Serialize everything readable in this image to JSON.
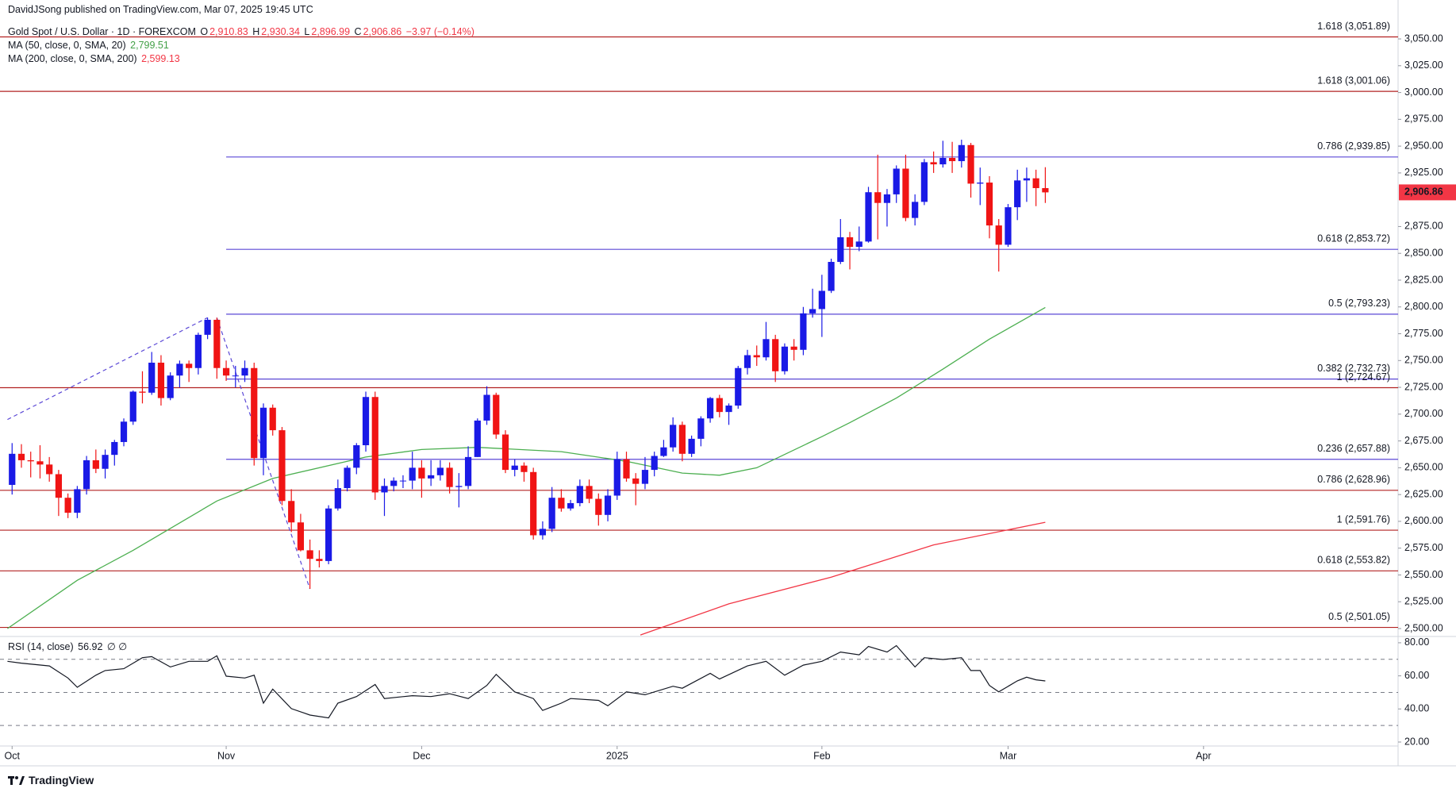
{
  "header": {
    "publisher": "DavidJSong published on TradingView.com, Mar 07, 2025 19:45 UTC",
    "symbol": "Gold Spot / U.S. Dollar · 1D · FOREXCOM",
    "ohlc": [
      {
        "key": "O",
        "value": "2,910.83"
      },
      {
        "key": "H",
        "value": "2,930.34"
      },
      {
        "key": "L",
        "value": "2,896.99"
      },
      {
        "key": "C",
        "value": "2,906.86"
      }
    ],
    "change": "−3.97 (−0.14%)",
    "indicators": [
      {
        "name": "MA (50, close, 0, SMA, 20)",
        "value": "2,799.51"
      },
      {
        "name": "MA (200, close, 0, SMA, 200)",
        "value": "2,599.13"
      }
    ]
  },
  "chart_data": [
    {
      "type": "candlestick",
      "up_color": "#1a1ae6",
      "down_color": "#f01414",
      "xlim": [
        -1.3,
        148.9
      ],
      "ylim": [
        2492.6,
        3086.3
      ],
      "yticks": [
        {
          "value": 2500,
          "label": "2,500.00"
        },
        {
          "value": 2525,
          "label": "2,525.00"
        },
        {
          "value": 2550,
          "label": "2,550.00"
        },
        {
          "value": 2575,
          "label": "2,575.00"
        },
        {
          "value": 2600,
          "label": "2,600.00"
        },
        {
          "value": 2625,
          "label": "2,625.00"
        },
        {
          "value": 2650,
          "label": "2,650.00"
        },
        {
          "value": 2675,
          "label": "2,675.00"
        },
        {
          "value": 2700,
          "label": "2,700.00"
        },
        {
          "value": 2725,
          "label": "2,725.00"
        },
        {
          "value": 2750,
          "label": "2,750.00"
        },
        {
          "value": 2775,
          "label": "2,775.00"
        },
        {
          "value": 2800,
          "label": "2,800.00"
        },
        {
          "value": 2825,
          "label": "2,825.00"
        },
        {
          "value": 2850,
          "label": "2,850.00"
        },
        {
          "value": 2875,
          "label": "2,875.00"
        },
        {
          "value": 2925,
          "label": "2,925.00"
        },
        {
          "value": 2950,
          "label": "2,950.00"
        },
        {
          "value": 2975,
          "label": "2,975.00"
        },
        {
          "value": 3000,
          "label": "3,000.00"
        },
        {
          "value": 3025,
          "label": "3,025.00"
        },
        {
          "value": 3050,
          "label": "3,050.00"
        }
      ],
      "open": [
        2634,
        2663,
        2657,
        2656,
        2653,
        2644,
        2622,
        2608,
        2630,
        2657,
        2649,
        2662,
        2674,
        2693,
        2721,
        2720,
        2748,
        2715,
        2736,
        2747,
        2743,
        2774,
        2788,
        2743,
        2736,
        2736,
        2743,
        2659,
        2706,
        2685,
        2619,
        2599,
        2573,
        2565,
        2563,
        2612,
        2631,
        2650,
        2671,
        2716,
        2627,
        2633,
        2638,
        2638,
        2650,
        2640,
        2643,
        2650,
        2632,
        2633,
        2660,
        2694,
        2718,
        2681,
        2648,
        2652,
        2646,
        2587,
        2593,
        2622,
        2612,
        2617,
        2633,
        2621,
        2606,
        2624,
        2658,
        2640,
        2635,
        2648,
        2661,
        2669,
        2690,
        2663,
        2677,
        2696,
        2715,
        2702,
        2708,
        2743,
        2755,
        2753,
        2770,
        2740,
        2763,
        2760,
        2794,
        2798,
        2815,
        2842,
        2865,
        2856,
        2861,
        2907,
        2897,
        2905,
        2929,
        2883,
        2898,
        2935,
        2933,
        2939,
        2936,
        2951,
        2915,
        2916,
        2876,
        2858,
        2893,
        2918,
        2920,
        2910.83
      ],
      "high": [
        2673,
        2672,
        2665,
        2671,
        2660,
        2648,
        2626,
        2633,
        2661,
        2667,
        2667,
        2676,
        2696,
        2722,
        2740,
        2758,
        2755,
        2739,
        2750,
        2750,
        2776,
        2790,
        2790,
        2750,
        2745,
        2750,
        2748,
        2710,
        2709,
        2688,
        2630,
        2607,
        2583,
        2573,
        2615,
        2639,
        2652,
        2673,
        2721,
        2721,
        2640,
        2641,
        2643,
        2665,
        2657,
        2657,
        2657,
        2655,
        2645,
        2670,
        2696,
        2726,
        2720,
        2685,
        2658,
        2655,
        2650,
        2600,
        2632,
        2630,
        2620,
        2639,
        2639,
        2626,
        2630,
        2665,
        2665,
        2645,
        2660,
        2665,
        2676,
        2697,
        2693,
        2680,
        2698,
        2716,
        2718,
        2710,
        2745,
        2760,
        2764,
        2786,
        2774,
        2766,
        2770,
        2800,
        2817,
        2830,
        2845,
        2882,
        2870,
        2875,
        2912,
        2942,
        2910,
        2932,
        2942,
        2905,
        2938,
        2945,
        2955,
        2954,
        2956,
        2953,
        2930,
        2922,
        2882,
        2896,
        2928,
        2930,
        2928,
        2930.34
      ],
      "low": [
        2625,
        2650,
        2641,
        2640,
        2637,
        2605,
        2603,
        2603,
        2625,
        2645,
        2640,
        2652,
        2670,
        2690,
        2710,
        2718,
        2708,
        2713,
        2725,
        2730,
        2737,
        2770,
        2733,
        2731,
        2725,
        2730,
        2652,
        2643,
        2680,
        2615,
        2590,
        2572,
        2537,
        2557,
        2560,
        2610,
        2628,
        2644,
        2665,
        2620,
        2605,
        2628,
        2631,
        2630,
        2622,
        2633,
        2638,
        2626,
        2613,
        2630,
        2660,
        2690,
        2677,
        2645,
        2642,
        2637,
        2583,
        2583,
        2590,
        2609,
        2610,
        2614,
        2617,
        2596,
        2600,
        2620,
        2637,
        2615,
        2630,
        2642,
        2660,
        2665,
        2656,
        2660,
        2670,
        2692,
        2697,
        2690,
        2705,
        2737,
        2745,
        2750,
        2730,
        2737,
        2750,
        2755,
        2790,
        2772,
        2813,
        2840,
        2835,
        2852,
        2860,
        2863,
        2875,
        2897,
        2880,
        2876,
        2895,
        2925,
        2930,
        2925,
        2930,
        2902,
        2895,
        2864,
        2833,
        2856,
        2881,
        2898,
        2894,
        2896.99
      ],
      "close": [
        2663,
        2657,
        2656,
        2653,
        2644,
        2622,
        2608,
        2630,
        2657,
        2649,
        2662,
        2674,
        2693,
        2721,
        2720,
        2748,
        2715,
        2736,
        2747,
        2743,
        2774,
        2788,
        2743,
        2736,
        2736,
        2743,
        2659,
        2706,
        2685,
        2619,
        2599,
        2573,
        2565,
        2563,
        2612,
        2631,
        2650,
        2671,
        2716,
        2627,
        2633,
        2638,
        2638,
        2650,
        2640,
        2643,
        2650,
        2632,
        2633,
        2660,
        2694,
        2718,
        2681,
        2648,
        2652,
        2646,
        2587,
        2593,
        2622,
        2612,
        2617,
        2633,
        2621,
        2606,
        2624,
        2658,
        2640,
        2635,
        2648,
        2661,
        2669,
        2690,
        2663,
        2677,
        2696,
        2715,
        2702,
        2708,
        2743,
        2755,
        2753,
        2770,
        2740,
        2763,
        2760,
        2794,
        2798,
        2815,
        2842,
        2865,
        2856,
        2861,
        2907,
        2897,
        2905,
        2929,
        2883,
        2898,
        2935,
        2933,
        2939,
        2936,
        2951,
        2915,
        2916,
        2876,
        2858,
        2893,
        2918,
        2920,
        2910.83,
        2906.86
      ],
      "overlays": [
        {
          "color": "#4caf50",
          "x": [
            -0.5,
            7,
            13,
            22,
            28,
            38,
            44,
            50,
            59,
            66,
            72,
            76,
            80,
            87,
            90,
            95,
            100,
            105,
            111
          ],
          "values": [
            2500,
            2545,
            2573,
            2619,
            2640,
            2660,
            2667,
            2669,
            2665,
            2656,
            2645,
            2643,
            2650,
            2679,
            2692,
            2715,
            2742,
            2770,
            2799.51
          ]
        },
        {
          "color": "#f23645",
          "x": [
            67.5,
            77,
            88,
            99,
            111
          ],
          "values": [
            2494,
            2523,
            2548,
            2578,
            2599.13
          ]
        }
      ],
      "trendlines": [
        {
          "color": "#5b48d6",
          "x": [
            -0.5,
            21
          ],
          "values": [
            2695,
            2790
          ]
        },
        {
          "color": "#5b48d6",
          "x": [
            22,
            32
          ],
          "values": [
            2790,
            2537
          ]
        }
      ],
      "levels": [
        {
          "value": 3051.89,
          "label": "1.618 (3,051.89)",
          "color": "#b22222"
        },
        {
          "value": 3001.06,
          "label": "1.618 (3,001.06)",
          "color": "#b22222"
        },
        {
          "value": 2939.85,
          "label": "0.786 (2,939.85)",
          "color": "#5b48d6",
          "start": 23
        },
        {
          "value": 2853.72,
          "label": "0.618 (2,853.72)",
          "color": "#5b48d6",
          "start": 23
        },
        {
          "value": 2793.23,
          "label": "0.5 (2,793.23)",
          "color": "#5b48d6",
          "start": 23
        },
        {
          "value": 2732.73,
          "label": "0.382 (2,732.73)",
          "color": "#5b48d6",
          "start": 23
        },
        {
          "value": 2724.67,
          "label": "1 (2,724.67)",
          "color": "#b22222"
        },
        {
          "value": 2657.88,
          "label": "0.236 (2,657.88)",
          "color": "#5b48d6",
          "start": 23
        },
        {
          "value": 2628.96,
          "label": "0.786 (2,628.96)",
          "color": "#b22222"
        },
        {
          "value": 2591.76,
          "label": "1 (2,591.76)",
          "color": "#b22222"
        },
        {
          "value": 2553.82,
          "label": "0.618 (2,553.82)",
          "color": "#b22222"
        },
        {
          "value": 2501.05,
          "label": "0.5 (2,501.05)",
          "color": "#b22222"
        }
      ],
      "last_price": {
        "value": 2906.86,
        "label": "2,906.86",
        "color": "#f23645"
      }
    },
    {
      "type": "line",
      "title": "RSI (14, close)",
      "value_label": "56.92",
      "extra": "∅ ∅",
      "color": "#131722",
      "xlim": [
        -1.3,
        148.9
      ],
      "ylim": [
        17.6,
        83.8
      ],
      "yticks": [
        {
          "value": 20,
          "label": "20.00"
        },
        {
          "value": 40,
          "label": "40.00"
        },
        {
          "value": 60,
          "label": "60.00"
        },
        {
          "value": 80,
          "label": "80.00"
        }
      ],
      "levels": [
        70,
        50,
        30
      ],
      "xticks": [
        {
          "value": 0,
          "label": "Oct"
        },
        {
          "value": 23,
          "label": "Nov"
        },
        {
          "value": 44,
          "label": "Dec"
        },
        {
          "value": 65,
          "label": "2025"
        },
        {
          "value": 87,
          "label": "Feb"
        },
        {
          "value": 107,
          "label": "Mar"
        },
        {
          "value": 128,
          "label": "Apr"
        }
      ],
      "x": [
        -0.5,
        1,
        4,
        6,
        7,
        9,
        10,
        12,
        14,
        15,
        17,
        19,
        21,
        22,
        23,
        25,
        26,
        27,
        28,
        30,
        32,
        34,
        35,
        37,
        39,
        40,
        43,
        45,
        47,
        49,
        51,
        52,
        54,
        56,
        57,
        59,
        60,
        63,
        64,
        66,
        68,
        71,
        72,
        75,
        76,
        79,
        81,
        83,
        85,
        87,
        89,
        91,
        92,
        94,
        95,
        97,
        98,
        100,
        102,
        103,
        104,
        105,
        106,
        108,
        109,
        110,
        111
      ],
      "values": [
        68.8,
        67.7,
        66.0,
        58.7,
        53.1,
        60.4,
        63.2,
        64.3,
        71.0,
        71.6,
        65.4,
        68.8,
        68.8,
        72.1,
        59.8,
        58.7,
        60.4,
        43.5,
        52.0,
        40.2,
        36.3,
        34.6,
        43.5,
        47.5,
        54.8,
        46.3,
        48.0,
        47.5,
        49.2,
        46.3,
        54.2,
        60.9,
        50.3,
        46.3,
        39.1,
        43.5,
        46.3,
        45.2,
        41.9,
        50.3,
        48.6,
        53.7,
        52.5,
        61.5,
        58.1,
        66.0,
        68.8,
        60.4,
        66.5,
        68.8,
        74.4,
        72.7,
        77.8,
        74.4,
        78.3,
        65.4,
        71.0,
        69.9,
        71.0,
        63.2,
        63.2,
        54.2,
        50.3,
        57.0,
        59.2,
        57.6,
        56.92
      ]
    }
  ],
  "footer": {
    "brand": "TradingView"
  }
}
